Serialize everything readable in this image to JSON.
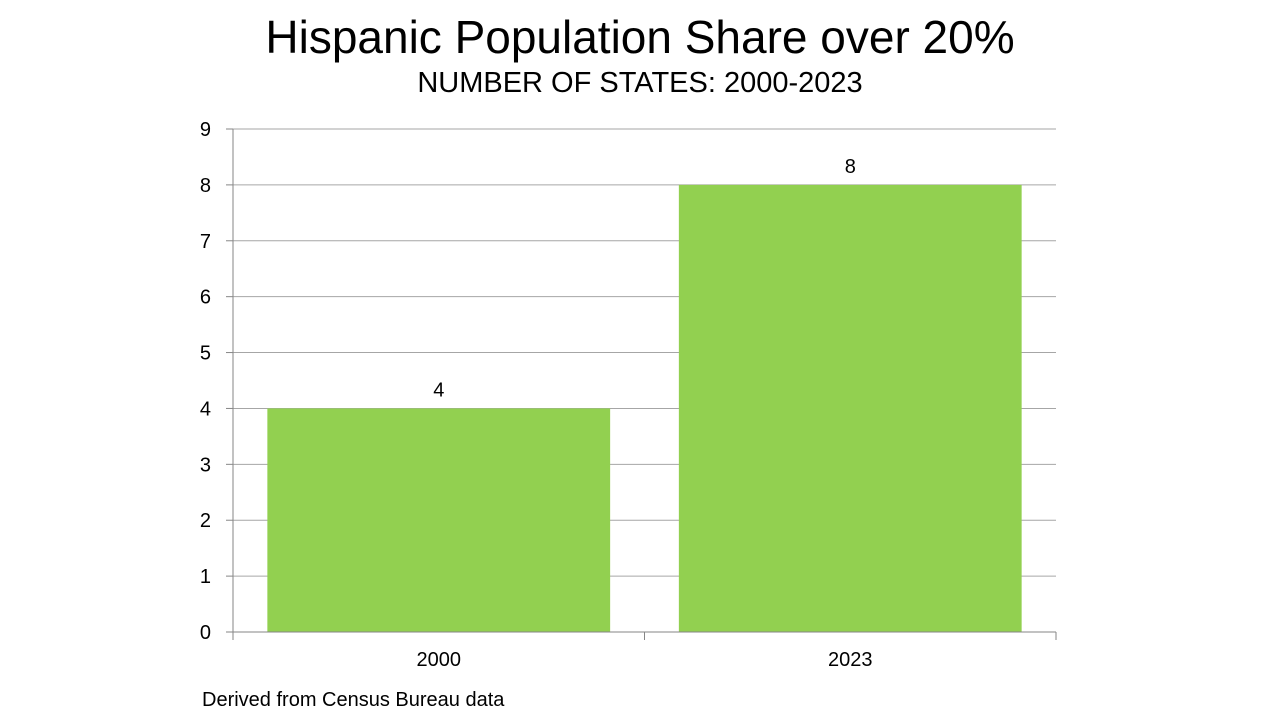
{
  "header": {
    "title": "Hispanic Population Share over 20%",
    "subtitle": "NUMBER OF STATES: 2000-2023"
  },
  "footer": {
    "source": "Derived from Census Bureau data"
  },
  "colors": {
    "bar": "#92d050",
    "grid": "#a6a6a6",
    "axis": "#868686"
  },
  "chart_data": {
    "type": "bar",
    "title": "Hispanic Population Share over 20%",
    "subtitle": "NUMBER OF STATES: 2000-2023",
    "categories": [
      "2000",
      "2023"
    ],
    "values": [
      4,
      8
    ],
    "data_labels": [
      "4",
      "8"
    ],
    "yticks": [
      "0",
      "1",
      "2",
      "3",
      "4",
      "5",
      "6",
      "7",
      "8",
      "9"
    ],
    "ylim": [
      0,
      9
    ],
    "grid": true,
    "legend": "none"
  }
}
